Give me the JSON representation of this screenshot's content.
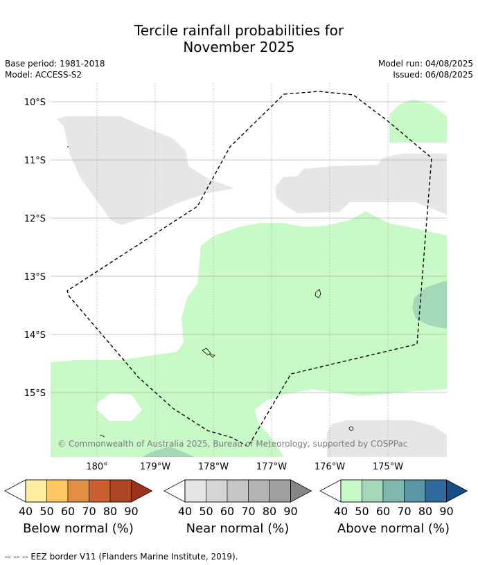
{
  "title_line1": "Tercile rainfall probabilities for",
  "title_line2": "November 2025",
  "meta": {
    "base_period": "Base period: 1981-2018",
    "model": "Model: ACCESS-S2",
    "model_run": "Model run: 04/08/2025",
    "issued": "Issued: 06/08/2025"
  },
  "map": {
    "lat_labels": [
      "10°S",
      "11°S",
      "12°S",
      "13°S",
      "14°S",
      "15°S"
    ],
    "lon_labels": [
      "180°",
      "179°W",
      "178°W",
      "177°W",
      "176°W",
      "175°W"
    ],
    "copyright": "© Commonwealth of Australia 2025, Bureau of Meteorology, supported by COSPPac"
  },
  "colorbars": [
    {
      "name": "Below normal (%)",
      "ticks": [
        "40",
        "50",
        "60",
        "70",
        "80",
        "90"
      ],
      "colors": [
        "#ffeda0",
        "#fec762",
        "#e08f45",
        "#cc5f2f",
        "#ad4424",
        "#99331c"
      ]
    },
    {
      "name": "Near normal (%)",
      "ticks": [
        "40",
        "50",
        "60",
        "70",
        "80",
        "90"
      ],
      "colors": [
        "#e6e6e6",
        "#d6d6d6",
        "#c6c6c6",
        "#b3b3b3",
        "#a0a0a0",
        "#858585"
      ]
    },
    {
      "name": "Above normal (%)",
      "ticks": [
        "40",
        "50",
        "60",
        "70",
        "80",
        "90"
      ],
      "colors": [
        "#c8fac8",
        "#a5d8b8",
        "#80b8b0",
        "#5b96a6",
        "#2f6a9c",
        "#174c86"
      ]
    }
  ],
  "footnote": "--  --  -- EEZ border V11 (Flanders Marine Institute, 2019)."
}
